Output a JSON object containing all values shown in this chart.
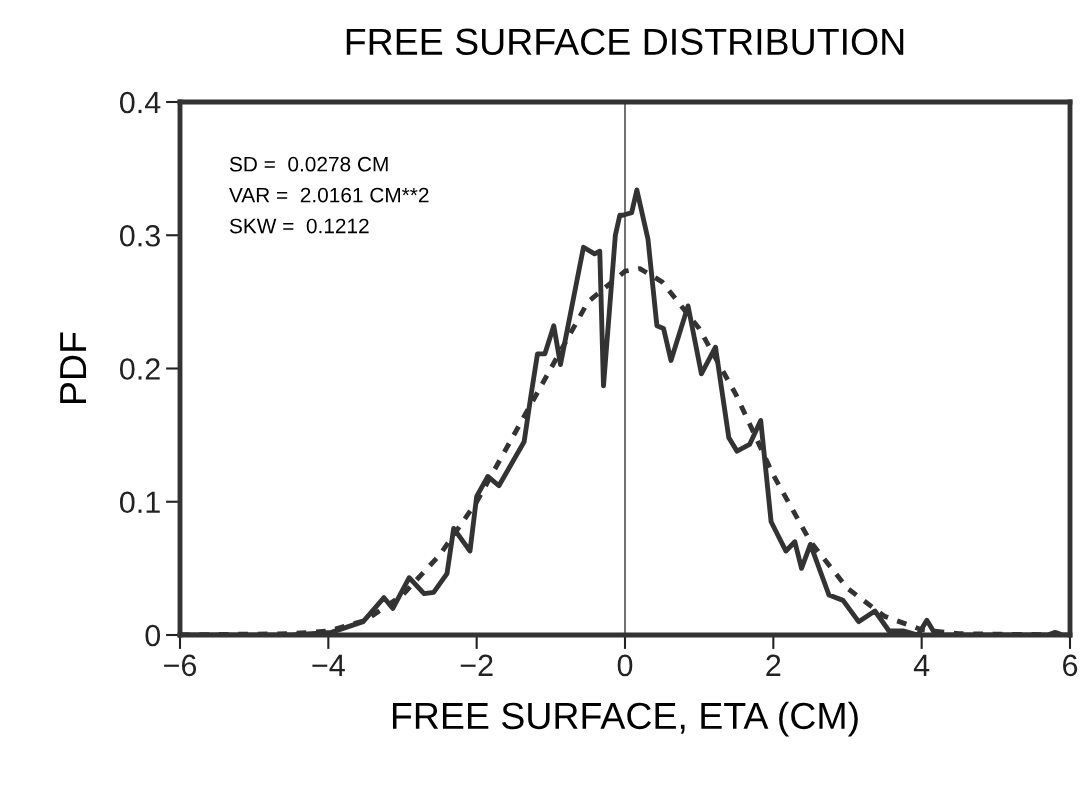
{
  "chart_data": {
    "type": "line",
    "title": "FREE SURFACE DISTRIBUTION",
    "xlabel": "FREE SURFACE, ETA (CM)",
    "ylabel": "PDF",
    "annotations": [
      "SD =  0.0278 CM",
      "VAR =  2.0161 CM**2",
      "SKW =  0.1212"
    ],
    "xlim": [
      -6,
      6
    ],
    "ylim": [
      0,
      0.4
    ],
    "xticks": [
      {
        "value": -6,
        "label": "−6"
      },
      {
        "value": -4,
        "label": "−4"
      },
      {
        "value": -2,
        "label": "−2"
      },
      0,
      2,
      4,
      6
    ],
    "yticks": [
      0,
      0.1,
      0.2,
      0.3,
      0.4
    ],
    "ref_lines": [
      {
        "axis": "x",
        "value": 0,
        "color": "#333333"
      }
    ],
    "series": [
      {
        "color": "#333333",
        "line_style": "solid",
        "x": [
          -6,
          -4.5,
          -3.96,
          -3.53,
          -3.25,
          -3.13,
          -2.91,
          -2.71,
          -2.58,
          -2.4,
          -2.31,
          -2.09,
          -2.0,
          -1.85,
          -1.7,
          -1.36,
          -1.27,
          -1.18,
          -1.08,
          -0.96,
          -0.87,
          -0.56,
          -0.41,
          -0.34,
          -0.29,
          -0.13,
          -0.07,
          -0.03,
          0.09,
          0.16,
          0.31,
          0.43,
          0.52,
          0.62,
          0.85,
          1.03,
          1.22,
          1.4,
          1.51,
          1.68,
          1.83,
          1.97,
          2.17,
          2.29,
          2.38,
          2.5,
          2.75,
          2.94,
          3.15,
          3.37,
          3.56,
          3.76,
          3.95,
          4.07,
          4.19,
          5.0,
          5.7,
          5.8,
          5.9,
          6
        ],
        "values": [
          0,
          0,
          0.002,
          0.01,
          0.028,
          0.02,
          0.043,
          0.031,
          0.032,
          0.046,
          0.08,
          0.063,
          0.104,
          0.119,
          0.112,
          0.145,
          0.179,
          0.211,
          0.211,
          0.232,
          0.203,
          0.291,
          0.286,
          0.288,
          0.187,
          0.3,
          0.315,
          0.315,
          0.317,
          0.334,
          0.297,
          0.232,
          0.23,
          0.206,
          0.247,
          0.196,
          0.216,
          0.148,
          0.138,
          0.143,
          0.161,
          0.085,
          0.063,
          0.07,
          0.05,
          0.068,
          0.03,
          0.026,
          0.01,
          0.018,
          0.003,
          0.003,
          0,
          0.011,
          0,
          0,
          0,
          0.002,
          0,
          0
        ]
      },
      {
        "color": "#333333",
        "line_style": "dashed",
        "x": [
          -6,
          -4.5,
          -4,
          -3.5,
          -3,
          -2.5,
          -2,
          -1.5,
          -1,
          -0.5,
          0,
          0.2,
          0.5,
          1,
          1.5,
          2,
          2.5,
          3,
          3.5,
          4,
          4.5,
          6
        ],
        "values": [
          0,
          0.001,
          0.003,
          0.011,
          0.03,
          0.06,
          0.1,
          0.15,
          0.2,
          0.25,
          0.273,
          0.275,
          0.265,
          0.23,
          0.18,
          0.12,
          0.07,
          0.035,
          0.014,
          0.004,
          0.001,
          0
        ]
      }
    ]
  }
}
